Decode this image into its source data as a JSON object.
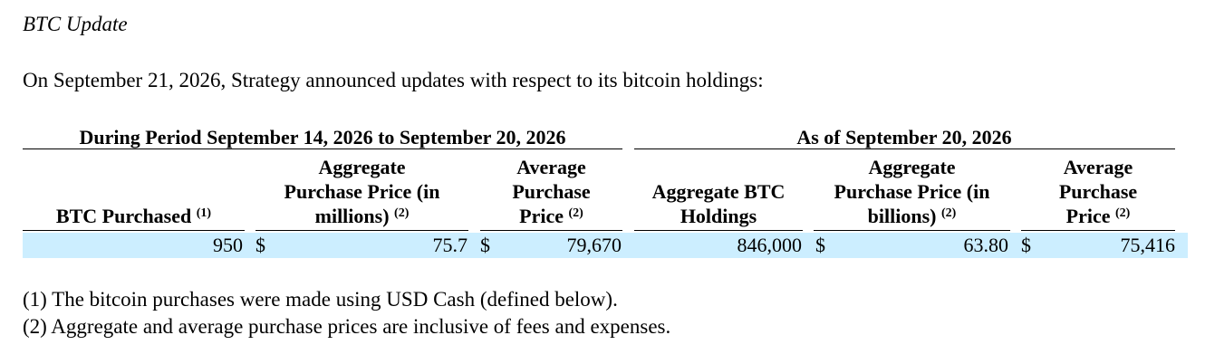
{
  "section": {
    "heading": "BTC Update",
    "intro": "On September 21, 2026, Strategy announced updates with respect to its bitcoin holdings:"
  },
  "table": {
    "group_headers": {
      "period": "During Period September 14, 2026 to September 20, 2026",
      "as_of": "As of September 20, 2026"
    },
    "columns": {
      "btc_purchased": {
        "line1": "BTC Purchased",
        "note": "(1)"
      },
      "agg_price_millions": {
        "line1": "Aggregate",
        "line2": "Purchase Price (in",
        "line3": "millions)",
        "note": "(2)"
      },
      "avg_price_period": {
        "line1": "Average",
        "line2": "Purchase",
        "line3": "Price",
        "note": "(2)"
      },
      "agg_holdings": {
        "line1": "Aggregate BTC",
        "line2": "Holdings"
      },
      "agg_price_billions": {
        "line1": "Aggregate",
        "line2": "Purchase Price (in",
        "line3": "billions)",
        "note": "(2)"
      },
      "avg_price_asof": {
        "line1": "Average",
        "line2": "Purchase",
        "line3": "Price",
        "note": "(2)"
      }
    },
    "row": {
      "btc_purchased": "950",
      "currency_1": "$",
      "agg_price_millions": "75.7",
      "currency_2": "$",
      "avg_price_period": "79,670",
      "agg_holdings": "846,000",
      "currency_3": "$",
      "agg_price_billions": "63.80",
      "currency_4": "$",
      "avg_price_asof": "75,416"
    },
    "row_highlight_color": "#cceeff"
  },
  "footnotes": [
    "(1) The bitcoin purchases were made using USD Cash (defined below).",
    "(2) Aggregate and average purchase prices are inclusive of fees and expenses."
  ]
}
